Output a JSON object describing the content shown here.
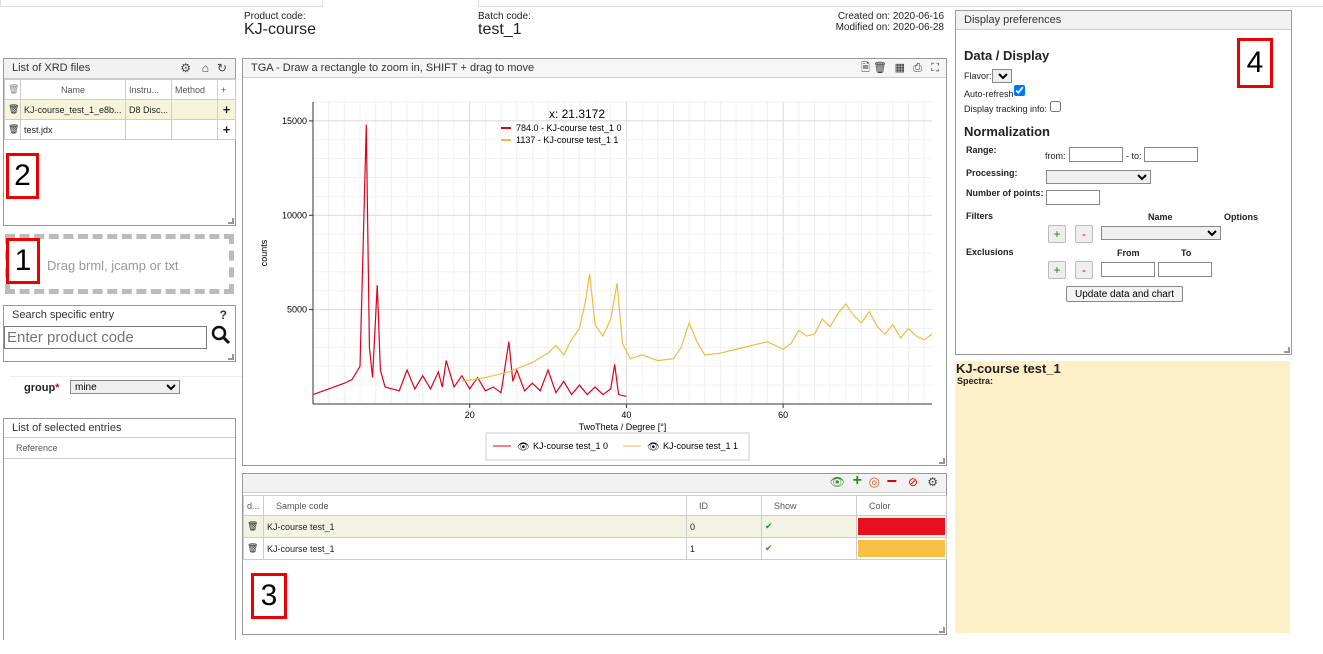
{
  "header": {
    "product_code_label": "Product code:",
    "product_code": "KJ-course",
    "batch_code_label": "Batch code:",
    "batch_code": "test_1",
    "created": "Created on: 2020-06-16",
    "modified": "Modified on: 2020-06-28"
  },
  "xrd_panel": {
    "title": "List of XRD files",
    "columns": [
      "Name",
      "Instru...",
      "Method",
      "+"
    ],
    "rows": [
      {
        "name": "KJ-course_test_1_e8b...",
        "instrument": "D8 Disc...",
        "method": "",
        "add": "+"
      },
      {
        "name": "test.jdx",
        "instrument": "",
        "method": "",
        "add": "+"
      }
    ]
  },
  "dropzone": {
    "text": "Drag brml, jcamp or txt"
  },
  "search": {
    "title": "Search specific entry",
    "help": "?",
    "placeholder": "Enter product code"
  },
  "group": {
    "label": "group",
    "required": "*",
    "value": "mine"
  },
  "selected_entries": {
    "title": "List of selected entries",
    "column": "Reference"
  },
  "chart_panel": {
    "title": "TGA - Draw a rectangle to zoom in, SHIFT + drag to move"
  },
  "chart_data": {
    "type": "line",
    "xlabel": "TwoTheta / Degree [°]",
    "ylabel": "counts",
    "xlim": [
      0,
      79
    ],
    "ylim": [
      0,
      16000
    ],
    "xticks": [
      20,
      40,
      60
    ],
    "yticks": [
      5000,
      10000,
      15000
    ],
    "crosshair_label": "x: 21.3172",
    "tooltip_series": [
      "784.0 - KJ-course test_1 0",
      "1137 - KJ-course test_1 1"
    ],
    "legend": [
      "KJ-course test_1 0",
      "KJ-course test_1 1"
    ],
    "grid": true,
    "series": [
      {
        "name": "KJ-course test_1 0",
        "color": "#e0001a",
        "x": [
          0,
          2,
          4,
          5,
          6,
          6.8,
          7.2,
          7.6,
          8.2,
          8.6,
          9.2,
          11,
          12,
          13,
          14,
          15,
          16,
          16.5,
          17,
          18,
          19,
          20,
          21,
          22,
          23,
          24,
          25,
          25.5,
          26,
          27,
          28,
          29,
          30,
          31,
          32,
          33,
          34,
          35,
          36,
          37,
          38,
          38.5,
          39,
          40
        ],
        "y": [
          500,
          800,
          1100,
          1300,
          2000,
          14800,
          3000,
          1400,
          6300,
          1800,
          900,
          700,
          1800,
          800,
          1500,
          800,
          1700,
          900,
          2300,
          900,
          1500,
          800,
          1400,
          700,
          900,
          600,
          3300,
          1200,
          1800,
          700,
          1100,
          700,
          1800,
          600,
          1200,
          500,
          1000,
          500,
          900,
          500,
          800,
          2100,
          500,
          400
        ]
      },
      {
        "name": "KJ-course test_1 1",
        "color": "#f4b942",
        "x": [
          19,
          22,
          25,
          28,
          30,
          31,
          32,
          33,
          34,
          34.8,
          35.3,
          36,
          37,
          38,
          38.8,
          39.5,
          40.5,
          42,
          44,
          46,
          47,
          48,
          49,
          50,
          52,
          54,
          56,
          58,
          60,
          61,
          62,
          63,
          64,
          65,
          66,
          67,
          68,
          69,
          70,
          71,
          72,
          73,
          74,
          75,
          76,
          77,
          78,
          79
        ],
        "y": [
          1200,
          1400,
          1700,
          2200,
          2700,
          3100,
          2600,
          3400,
          4000,
          5500,
          6900,
          4200,
          3600,
          4500,
          6400,
          3200,
          2400,
          2600,
          2300,
          2400,
          3000,
          4300,
          3300,
          2600,
          2700,
          2900,
          3100,
          3300,
          2900,
          3200,
          3900,
          3600,
          3700,
          4500,
          4100,
          4800,
          5300,
          4700,
          4300,
          4900,
          4100,
          3700,
          4200,
          3500,
          4000,
          3600,
          3400,
          3700
        ]
      }
    ]
  },
  "samples_panel": {
    "columns": [
      "d...",
      "Sample code",
      "ID",
      "Show",
      "Color"
    ],
    "rows": [
      {
        "code": "KJ-course test_1",
        "id": "0",
        "show": "✔",
        "color": "#e8101f"
      },
      {
        "code": "KJ-course test_1",
        "id": "1",
        "show": "✔",
        "color": "#f8bf45"
      }
    ]
  },
  "prefs": {
    "title": "Display preferences",
    "data_display": "Data / Display",
    "flavor_label": "Flavor:",
    "auto_refresh_label": "Auto-refresh",
    "tracking_label": "Display tracking info:",
    "normalization": "Normalization",
    "range_label": "Range:",
    "from_label": "from:",
    "to_label": "- to:",
    "processing_label": "Processing:",
    "points_label": "Number of points:",
    "filters_label": "Filters",
    "name_col": "Name",
    "options_col": "Options",
    "exclusions_label": "Exclusions",
    "from_col": "From",
    "to_col": "To",
    "update_button": "Update data and chart"
  },
  "summary": {
    "title": "KJ-course test_1",
    "spectra_label": "Spectra:"
  },
  "markers": {
    "m1": "1",
    "m2": "2",
    "m3": "3",
    "m4": "4"
  }
}
